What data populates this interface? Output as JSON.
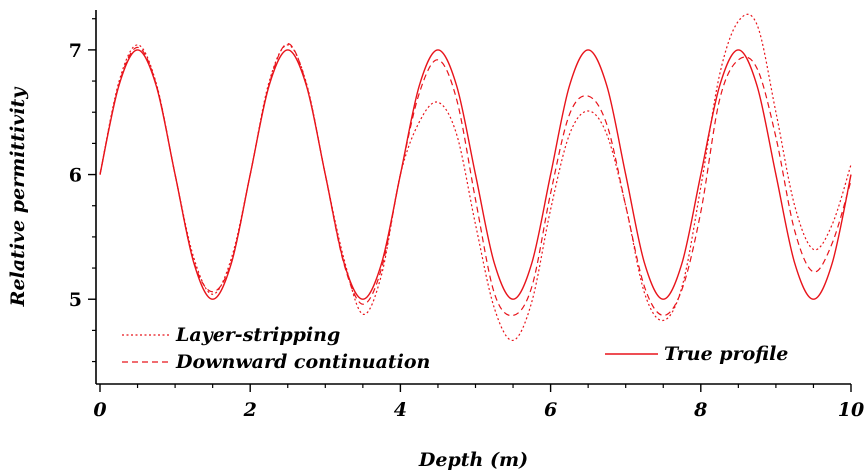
{
  "chart_data": {
    "type": "line",
    "xlabel": "Depth (m)",
    "ylabel": "Relative permittivity",
    "xlim": [
      0,
      10
    ],
    "ylim": [
      4.32,
      7.32
    ],
    "xticks": [
      "0",
      "2",
      "4",
      "6",
      "8",
      "10"
    ],
    "yticks": [
      "5",
      "6",
      "7"
    ],
    "grid": false,
    "line_color": "#e8141b",
    "series": [
      {
        "name": "Layer-stripping",
        "style": "dotted",
        "x": [
          0,
          0.25,
          0.5,
          0.75,
          1.0,
          1.25,
          1.5,
          1.75,
          2.0,
          2.25,
          2.5,
          2.75,
          3.0,
          3.25,
          3.5,
          3.75,
          4.0,
          4.25,
          4.5,
          4.75,
          5.0,
          5.25,
          5.5,
          5.75,
          6.0,
          6.25,
          6.5,
          6.75,
          7.0,
          7.25,
          7.5,
          7.75,
          8.0,
          8.25,
          8.5,
          8.75,
          9.0,
          9.25,
          9.5,
          9.75,
          10.0
        ],
        "y": [
          6.0,
          6.74,
          7.04,
          6.73,
          6.0,
          5.33,
          5.04,
          5.33,
          6.0,
          6.74,
          7.04,
          6.73,
          6.0,
          5.32,
          4.88,
          5.2,
          6.0,
          6.42,
          6.58,
          6.32,
          5.6,
          4.93,
          4.67,
          4.98,
          5.72,
          6.32,
          6.51,
          6.32,
          5.75,
          5.05,
          4.83,
          5.1,
          5.9,
          6.8,
          7.23,
          7.2,
          6.5,
          5.75,
          5.4,
          5.6,
          6.08
        ]
      },
      {
        "name": "Downward continuation",
        "style": "dashed",
        "x": [
          0,
          0.25,
          0.5,
          0.75,
          1.0,
          1.25,
          1.5,
          1.75,
          2.0,
          2.25,
          2.5,
          2.75,
          3.0,
          3.25,
          3.5,
          3.75,
          4.0,
          4.25,
          4.5,
          4.75,
          5.0,
          5.25,
          5.5,
          5.75,
          6.0,
          6.25,
          6.5,
          6.75,
          7.0,
          7.25,
          7.5,
          7.75,
          8.0,
          8.25,
          8.5,
          8.75,
          9.0,
          9.25,
          9.5,
          9.75,
          10.0
        ],
        "y": [
          6.0,
          6.72,
          7.02,
          6.72,
          6.0,
          5.3,
          5.06,
          5.3,
          6.0,
          6.72,
          7.05,
          6.72,
          6.0,
          5.28,
          4.96,
          5.25,
          6.0,
          6.65,
          6.92,
          6.6,
          5.8,
          5.05,
          4.87,
          5.1,
          5.85,
          6.48,
          6.63,
          6.4,
          5.75,
          5.1,
          4.87,
          5.08,
          5.7,
          6.6,
          6.92,
          6.85,
          6.3,
          5.55,
          5.22,
          5.45,
          5.95
        ]
      },
      {
        "name": "True profile",
        "style": "solid",
        "x": [
          0,
          0.25,
          0.5,
          0.75,
          1.0,
          1.25,
          1.5,
          1.75,
          2.0,
          2.25,
          2.5,
          2.75,
          3.0,
          3.25,
          3.5,
          3.75,
          4.0,
          4.25,
          4.5,
          4.75,
          5.0,
          5.25,
          5.5,
          5.75,
          6.0,
          6.25,
          6.5,
          6.75,
          7.0,
          7.25,
          7.5,
          7.75,
          8.0,
          8.25,
          8.5,
          8.75,
          9.0,
          9.25,
          9.5,
          9.75,
          10.0
        ],
        "y": [
          6.0,
          6.71,
          7.0,
          6.71,
          6.0,
          5.29,
          5.0,
          5.29,
          6.0,
          6.71,
          7.0,
          6.71,
          6.0,
          5.29,
          5.0,
          5.29,
          6.0,
          6.71,
          7.0,
          6.71,
          6.0,
          5.29,
          5.0,
          5.29,
          6.0,
          6.71,
          7.0,
          6.71,
          6.0,
          5.29,
          5.0,
          5.29,
          6.0,
          6.71,
          7.0,
          6.71,
          6.0,
          5.29,
          5.0,
          5.29,
          6.0
        ]
      }
    ],
    "legend": {
      "entries": [
        "Layer-stripping",
        "Downward continuation",
        "True profile"
      ],
      "placement": "bottom"
    }
  }
}
